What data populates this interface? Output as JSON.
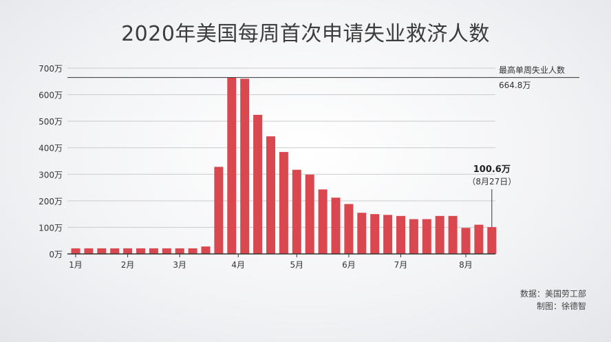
{
  "title": "2020年美国每周首次申请失业救济人数",
  "footer": {
    "source": "数据：美国劳工部",
    "author": "制图：徐德智"
  },
  "colors": {
    "bar": "#d9484e",
    "grid": "#c9cbcf",
    "axis": "#333333",
    "text": "#333333"
  },
  "chart_data": {
    "type": "bar",
    "unit": "万",
    "ylim": [
      0,
      700
    ],
    "yticks": [
      0,
      100,
      200,
      300,
      400,
      500,
      600,
      700
    ],
    "ytick_labels": [
      "0万",
      "100万",
      "200万",
      "300万",
      "400万",
      "500万",
      "600万",
      "700万"
    ],
    "month_labels": [
      {
        "label": "1月",
        "week_index": 0
      },
      {
        "label": "2月",
        "week_index": 4
      },
      {
        "label": "3月",
        "week_index": 8
      },
      {
        "label": "4月",
        "week_index": 12.5
      },
      {
        "label": "5月",
        "week_index": 17
      },
      {
        "label": "6月",
        "week_index": 21
      },
      {
        "label": "7月",
        "week_index": 25
      },
      {
        "label": "8月",
        "week_index": 30
      }
    ],
    "values": [
      21,
      21,
      21,
      21,
      21,
      21,
      21,
      21,
      21,
      21,
      28,
      328,
      665,
      660,
      524,
      443,
      384,
      317,
      299,
      243,
      212,
      188,
      155,
      150,
      147,
      143,
      131,
      131,
      143,
      143,
      98,
      110,
      101
    ],
    "grid": true,
    "reference_line": {
      "value": 664.8,
      "label": "最高单周失业人数",
      "value_label": "664.8万"
    },
    "annotation": {
      "week_index": 32,
      "value_label": "100.6万",
      "date_label": "（8月27日）"
    }
  }
}
